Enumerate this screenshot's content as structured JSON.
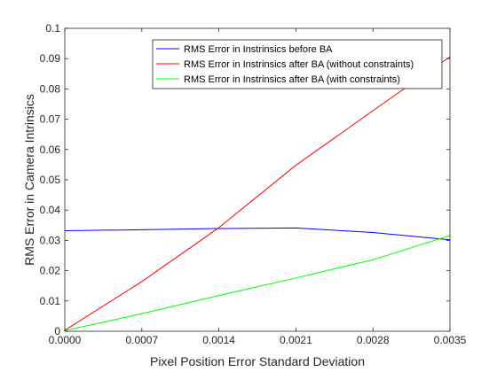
{
  "chart_data": {
    "type": "line",
    "title": "",
    "xlabel": "Pixel Position Error Standard Deviation",
    "ylabel": "RMS Error in Camera Intrinsics",
    "xlim": [
      0,
      0.0035
    ],
    "ylim": [
      0,
      0.1
    ],
    "x": [
      0,
      0.0007,
      0.0014,
      0.0021,
      0.0028,
      0.0035
    ],
    "xticks": [
      "0.0000",
      "0.0007",
      "0.0014",
      "0.0021",
      "0.0028",
      "0.0035"
    ],
    "yticks": [
      "0",
      "0.01",
      "0.02",
      "0.03",
      "0.04",
      "0.05",
      "0.06",
      "0.07",
      "0.08",
      "0.09",
      "0.1"
    ],
    "grid": false,
    "legend_position": "top-right",
    "series": [
      {
        "name": "RMS Error in Instrinsics before BA",
        "color": "#0000ff",
        "values": [
          0.0332,
          0.0335,
          0.0339,
          0.0341,
          0.0326,
          0.0302
        ]
      },
      {
        "name": "RMS Error in Instrinsics after BA (without constraints)",
        "color": "#ff0000",
        "values": [
          0.0003,
          0.0164,
          0.0342,
          0.0548,
          0.0728,
          0.0906
        ]
      },
      {
        "name": "RMS Error in Instrinsics after BA (with constraints)",
        "color": "#00ff00",
        "values": [
          0.0002,
          0.0058,
          0.0118,
          0.0176,
          0.0236,
          0.0316
        ]
      }
    ]
  }
}
